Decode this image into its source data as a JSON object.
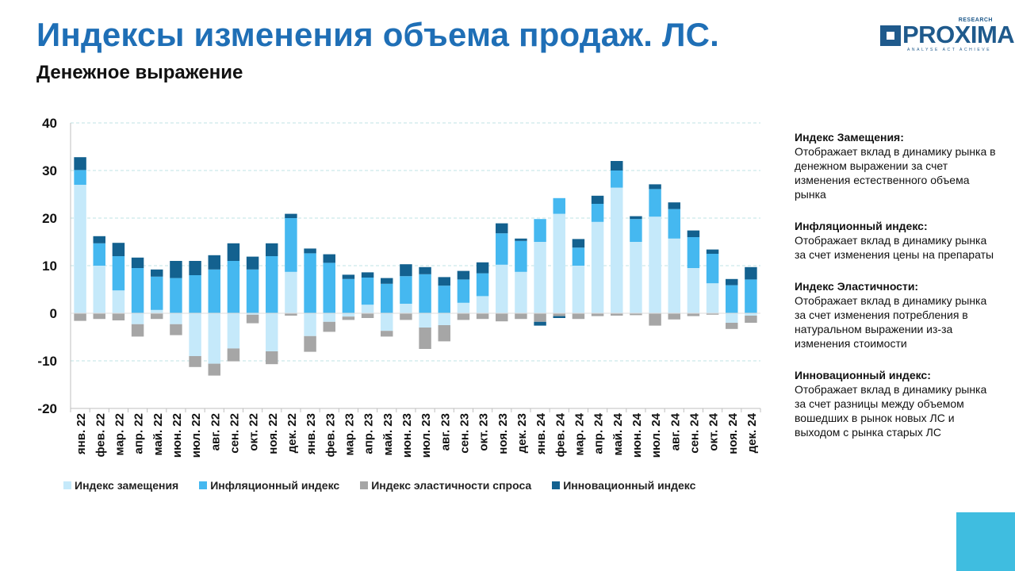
{
  "header": {
    "title": "Индексы изменения объема продаж. ЛС.",
    "subtitle": "Денежное выражение"
  },
  "logo": {
    "word": "PROXIMA",
    "research": "RESEARCH",
    "tagline": "ANALYSE ACT ACHIEVE",
    "color": "#1f5a8c"
  },
  "colors": {
    "title": "#1f6fb6",
    "corner": "#3fbde0"
  },
  "chart_data": {
    "type": "bar",
    "stacked": true,
    "ylim": [
      -20,
      40
    ],
    "yticks": [
      -20,
      -10,
      0,
      10,
      20,
      30,
      40
    ],
    "grid": "horizontal-dashed",
    "legend_position": "bottom",
    "categories": [
      "янв. 22",
      "фев. 22",
      "мар. 22",
      "апр. 22",
      "май. 22",
      "июн. 22",
      "июл. 22",
      "авг. 22",
      "сен. 22",
      "окт. 22",
      "ноя. 22",
      "дек. 22",
      "янв. 23",
      "фев. 23",
      "мар. 23",
      "апр. 23",
      "май. 23",
      "июн. 23",
      "июл. 23",
      "авг. 23",
      "сен. 23",
      "окт. 23",
      "ноя. 23",
      "дек. 23",
      "янв. 24",
      "фев. 24",
      "мар. 24",
      "апр. 24",
      "май. 24",
      "июн. 24",
      "июл. 24",
      "авг. 24",
      "сен. 24",
      "окт. 24",
      "ноя. 24",
      "дек. 24"
    ],
    "series": [
      {
        "name": "Индекс замещения",
        "color": "#c5e9fa",
        "values": [
          27.0,
          10.0,
          4.8,
          -2.3,
          0.7,
          -2.3,
          -9.0,
          -10.6,
          -7.4,
          -0.3,
          -8.0,
          8.7,
          -4.8,
          -1.8,
          -0.7,
          1.8,
          -3.7,
          2.0,
          -3.0,
          -2.5,
          2.2,
          3.6,
          10.2,
          8.7,
          15.0,
          20.9,
          10.0,
          19.2,
          26.4,
          15.0,
          20.3,
          15.7,
          9.5,
          6.3,
          -2.0,
          -0.5
        ]
      },
      {
        "name": "Инфляционный индекс",
        "color": "#45b8f0",
        "values": [
          3.1,
          4.7,
          7.2,
          9.5,
          7.0,
          7.4,
          8.0,
          9.2,
          11.0,
          9.2,
          12.0,
          11.3,
          12.6,
          10.6,
          7.2,
          5.7,
          6.2,
          5.8,
          8.2,
          5.8,
          4.9,
          4.8,
          6.6,
          6.5,
          4.8,
          3.3,
          3.8,
          3.8,
          3.6,
          4.8,
          5.8,
          6.2,
          6.5,
          6.2,
          5.9,
          7.1
        ]
      },
      {
        "name": "Индекс эластичности спроса",
        "color": "#a6a6a6",
        "values": [
          -1.6,
          -1.2,
          -1.5,
          -2.6,
          -1.2,
          -2.3,
          -2.3,
          -2.5,
          -2.7,
          -1.8,
          -2.7,
          -0.5,
          -3.3,
          -2.1,
          -0.7,
          -1.0,
          -1.2,
          -1.4,
          -4.5,
          -3.4,
          -1.4,
          -1.2,
          -1.7,
          -1.2,
          -1.8,
          -0.6,
          -1.2,
          -0.6,
          -0.5,
          -0.4,
          -2.6,
          -1.3,
          -0.6,
          -0.3,
          -1.3,
          -1.5
        ]
      },
      {
        "name": "Инновационный индекс",
        "color": "#13618f",
        "values": [
          2.7,
          1.5,
          2.8,
          2.2,
          1.5,
          3.6,
          3.0,
          3.0,
          3.7,
          2.7,
          2.7,
          0.9,
          1.0,
          1.8,
          0.9,
          1.1,
          1.2,
          2.5,
          1.5,
          1.8,
          1.8,
          2.3,
          2.1,
          0.5,
          -0.8,
          -0.4,
          1.8,
          1.7,
          2.0,
          0.6,
          1.0,
          1.4,
          1.4,
          0.9,
          1.3,
          2.6
        ]
      }
    ]
  },
  "notes": [
    {
      "title": "Индекс Замещения:",
      "text": "Отображает вклад в динамику рынка в денежном выражении за счет изменения естественного объема рынка"
    },
    {
      "title": "Инфляционный индекс:",
      "text": "Отображает вклад в динамику рынка за счет изменения цены на препараты"
    },
    {
      "title": "Индекс Эластичности:",
      "text": "Отображает вклад в динамику рынка за счет изменения потребления в натуральном выражении из-за изменения стоимости"
    },
    {
      "title": "Инновационный индекс:",
      "text": "Отображает вклад в динамику рынка за счет разницы между объемом вошедших в рынок новых ЛС и выходом с рынка старых ЛС"
    }
  ]
}
